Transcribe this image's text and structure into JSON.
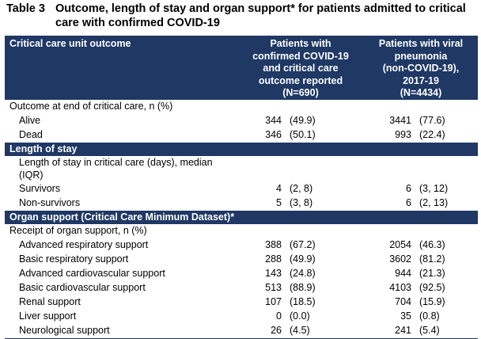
{
  "caption": {
    "number": "Table 3",
    "text": "Outcome, length of stay and organ support* for patients admitted to critical care with confirmed COVID-19"
  },
  "header": {
    "col1": "Critical care unit outcome",
    "col2": [
      "Patients with",
      "confirmed COVID-19",
      "and critical care",
      "outcome reported",
      "(N=690)"
    ],
    "col3": [
      "Patients with viral",
      "pneumonia",
      "(non-COVID-19),",
      "2017-19",
      "(N=4434)"
    ]
  },
  "sections": {
    "outcome": {
      "label": "Outcome at end of critical care, n (%)",
      "rows": [
        {
          "label": "Alive",
          "n1": "344",
          "p1": "(49.9)",
          "n2": "3441",
          "p2": "(77.6)"
        },
        {
          "label": "Dead",
          "n1": "346",
          "p1": "(50.1)",
          "n2": "993",
          "p2": "(22.4)"
        }
      ]
    },
    "length_of_stay": {
      "title": "Length of stay",
      "label_line1": "Length of stay in critical care (days), median",
      "label_line2": "(IQR)",
      "rows": [
        {
          "label": "Survivors",
          "n1": "4",
          "p1": "(2, 8)",
          "n2": "6",
          "p2": "(3, 12)"
        },
        {
          "label": "Non-survivors",
          "n1": "5",
          "p1": "(3, 8)",
          "n2": "6",
          "p2": "(2, 13)"
        }
      ]
    },
    "organ_support": {
      "title": "Organ support (Critical Care Minimum Dataset)*",
      "label": "Receipt of organ support, n (%)",
      "rows": [
        {
          "label": "Advanced respiratory support",
          "n1": "388",
          "p1": "(67.2)",
          "n2": "2054",
          "p2": "(46.3)"
        },
        {
          "label": "Basic respiratory support",
          "n1": "288",
          "p1": "(49.9)",
          "n2": "3602",
          "p2": "(81.2)"
        },
        {
          "label": "Advanced cardiovascular support",
          "n1": "143",
          "p1": "(24.8)",
          "n2": "944",
          "p2": "(21.3)"
        },
        {
          "label": "Basic cardiovascular support",
          "n1": "513",
          "p1": "(88.9)",
          "n2": "4103",
          "p2": "(92.5)"
        },
        {
          "label": "Renal support",
          "n1": "107",
          "p1": "(18.5)",
          "n2": "704",
          "p2": "(15.9)"
        },
        {
          "label": "Liver support",
          "n1": "0",
          "p1": "(0.0)",
          "n2": "35",
          "p2": "(0.8)"
        },
        {
          "label": "Neurological support",
          "n1": "26",
          "p1": "(4.5)",
          "n2": "241",
          "p2": "(5.4)"
        }
      ]
    }
  }
}
